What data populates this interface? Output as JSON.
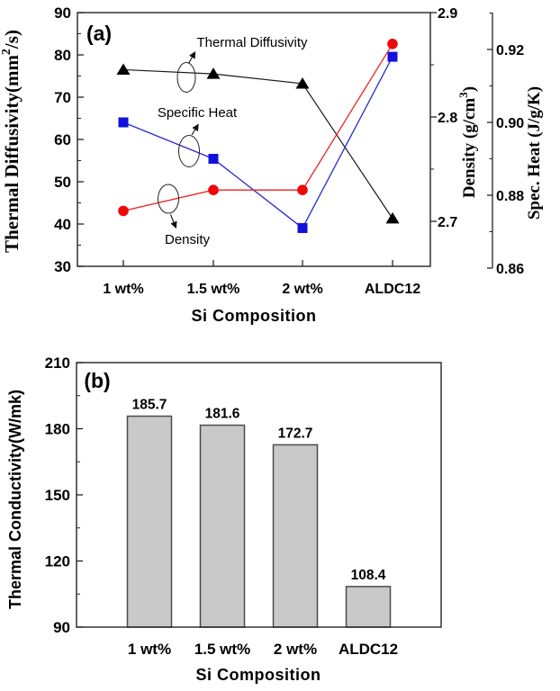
{
  "figure": {
    "panel_a_label": "(a)",
    "panel_b_label": "(b)",
    "annotations": {
      "diffusivity": "Thermal Diffusivity",
      "specific_heat": "Specific Heat",
      "density": "Density"
    },
    "y_left_parts": {
      "pre": "Thermal Diffusivity(mm",
      "sup": "2",
      "post": "/s)"
    },
    "density_parts": {
      "pre": "Density (g/cm",
      "sup": "3",
      "post": ")"
    },
    "spec_heat_label": "Spec. Heat (J/g/K)"
  },
  "chart_data": [
    {
      "panel": "a",
      "type": "line",
      "categories": [
        "1 wt%",
        "1.5 wt%",
        "2 wt%",
        "ALDC12"
      ],
      "xlabel": "Si Composition",
      "axes": {
        "left": {
          "label": "Thermal Diffusivity(mm2/s)",
          "ticks": [
            "90",
            "80",
            "70",
            "60",
            "50",
            "40",
            "30"
          ],
          "range": [
            30,
            90
          ]
        },
        "density": {
          "label": "Density (g/cm3)",
          "ticks": [
            "2.9",
            "2.8",
            "2.7"
          ]
        },
        "spec_heat": {
          "label": "Spec. Heat (J/g/K)",
          "ticks": [
            "0.92",
            "0.90",
            "0.88",
            "0.86"
          ]
        }
      },
      "series": [
        {
          "name": "Thermal Diffusivity",
          "axis": "left",
          "units": "mm2/s",
          "color": "#1a1a1a",
          "marker": "triangle",
          "values": [
            76.5,
            75.5,
            73.2,
            41.3
          ]
        },
        {
          "name": "Specific Heat",
          "axis": "spec_heat",
          "units": "J/g/K",
          "color": "#2b2bd4",
          "marker": "square",
          "values": [
            0.9,
            0.89,
            0.871,
            0.918
          ]
        },
        {
          "name": "Density",
          "axis": "density",
          "units": "g/cm3",
          "color": "#ee2222",
          "marker": "circle",
          "values": [
            2.71,
            2.73,
            2.73,
            2.87
          ]
        }
      ],
      "grid": false,
      "legend": "inline-annotations"
    },
    {
      "panel": "b",
      "type": "bar",
      "categories": [
        "1 wt%",
        "1.5 wt%",
        "2 wt%",
        "ALDC12"
      ],
      "values": [
        185.7,
        181.6,
        172.7,
        108.4
      ],
      "value_labels": [
        "185.7",
        "181.6",
        "172.7",
        "108.4"
      ],
      "xlabel": "Si Composition",
      "ylabel": "Thermal Conductivity(W/mk)",
      "yticks": [
        "210",
        "180",
        "150",
        "120",
        "90"
      ],
      "ylim": [
        90,
        210
      ],
      "bar_fill": "#c9c9c9",
      "bar_stroke": "#4a4a4a",
      "grid": false
    }
  ]
}
